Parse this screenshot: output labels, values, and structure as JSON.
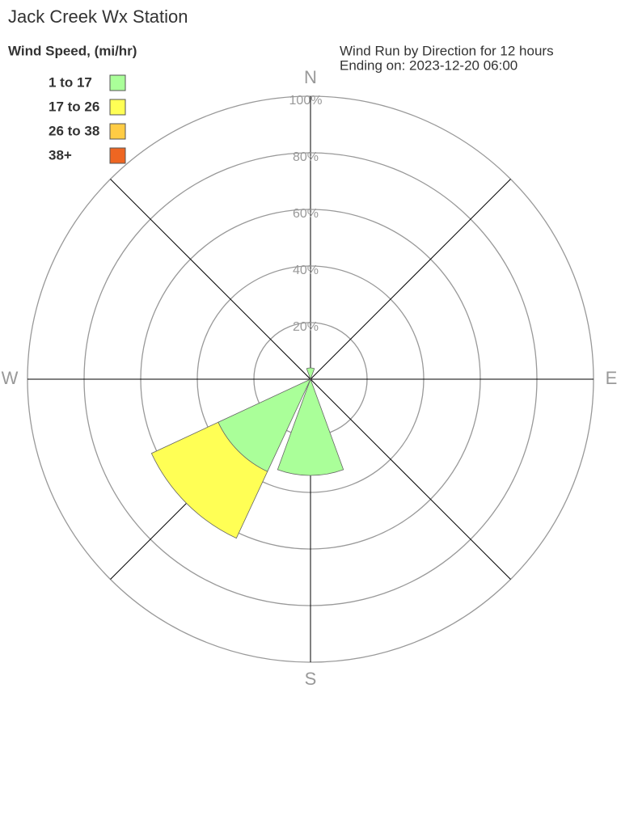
{
  "chart_data": {
    "type": "windrose",
    "title": "Jack Creek Wx Station",
    "subtitle": [
      "Wind Run by Direction for 12 hours",
      "Ending on: 2023-12-20 06:00"
    ],
    "legend_title": "Wind Speed, (mi/hr)",
    "categories": [
      "N",
      null,
      "E",
      null,
      "S",
      null,
      "W",
      null
    ],
    "series": [
      {
        "name": "1 to 17",
        "color": "#aaff99",
        "values": [
          4,
          0,
          0,
          0,
          34,
          36,
          0,
          0
        ]
      },
      {
        "name": "17 to 26",
        "color": "#ffff55",
        "values": [
          0,
          0,
          0,
          0,
          0,
          26,
          0,
          0
        ]
      },
      {
        "name": "26 to 38",
        "color": "#ffcc44",
        "values": [
          0,
          0,
          0,
          0,
          0,
          0,
          0,
          0
        ]
      },
      {
        "name": "38+",
        "color": "#ee6622",
        "values": [
          0,
          0,
          0,
          0,
          0,
          0,
          0,
          0
        ]
      }
    ],
    "rlim": [
      0,
      100
    ],
    "rticks": [
      {
        "value": 20,
        "label": "20%"
      },
      {
        "value": 40,
        "label": "40%"
      },
      {
        "value": 60,
        "label": "60%"
      },
      {
        "value": 80,
        "label": "80%"
      },
      {
        "value": 100,
        "label": "100%"
      }
    ]
  }
}
